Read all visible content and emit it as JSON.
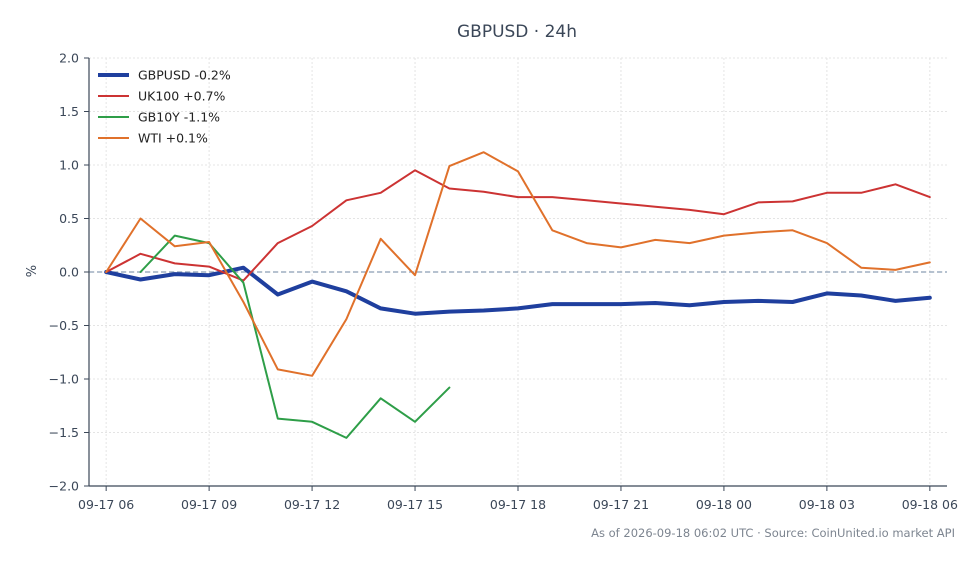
{
  "chart_data": {
    "type": "line",
    "title": "GBPUSD · 24h",
    "xlabel": "",
    "ylabel": "%",
    "ylim": [
      -2.0,
      2.0
    ],
    "yticks": [
      "2.0",
      "1.5",
      "1.0",
      "0.5",
      "0.0",
      "−0.5",
      "−1.0",
      "−1.5",
      "−2.0"
    ],
    "ytick_values": [
      2.0,
      1.5,
      1.0,
      0.5,
      0.0,
      -0.5,
      -1.0,
      -1.5,
      -2.0
    ],
    "xlim": [
      "2026-09-17 05:30",
      "2026-09-18 06:30"
    ],
    "xticks": [
      "09-17 06",
      "09-17 09",
      "09-17 12",
      "09-17 15",
      "09-17 18",
      "09-17 21",
      "09-18 00",
      "09-18 03",
      "09-18 06"
    ],
    "xtick_values": [
      "2026-09-17 06:00",
      "2026-09-17 09:00",
      "2026-09-17 12:00",
      "2026-09-17 15:00",
      "2026-09-17 18:00",
      "2026-09-17 21:00",
      "2026-09-18 00:00",
      "2026-09-18 03:00",
      "2026-09-18 06:00"
    ],
    "grid": true,
    "zero_line": true,
    "legend_position": "top-left",
    "series": [
      {
        "name": "GBPUSD -0.2%",
        "color": "#1f3f9e",
        "width": "thick",
        "x": [
          "2026-09-17 06:00",
          "2026-09-17 07:00",
          "2026-09-17 08:00",
          "2026-09-17 09:00",
          "2026-09-17 10:00",
          "2026-09-17 11:00",
          "2026-09-17 12:00",
          "2026-09-17 13:00",
          "2026-09-17 14:00",
          "2026-09-17 15:00",
          "2026-09-17 16:00",
          "2026-09-17 17:00",
          "2026-09-17 18:00",
          "2026-09-17 19:00",
          "2026-09-17 20:00",
          "2026-09-17 21:00",
          "2026-09-17 22:00",
          "2026-09-17 23:00",
          "2026-09-18 00:00",
          "2026-09-18 01:00",
          "2026-09-18 02:00",
          "2026-09-18 03:00",
          "2026-09-18 04:00",
          "2026-09-18 05:00",
          "2026-09-18 06:00"
        ],
        "values": [
          0.0,
          -0.07,
          -0.02,
          -0.03,
          0.04,
          -0.21,
          -0.09,
          -0.18,
          -0.34,
          -0.39,
          -0.37,
          -0.36,
          -0.34,
          -0.3,
          -0.3,
          -0.3,
          -0.29,
          -0.31,
          -0.28,
          -0.27,
          -0.28,
          -0.2,
          -0.22,
          -0.27,
          -0.24
        ]
      },
      {
        "name": "UK100 +0.7%",
        "color": "#cc3333",
        "width": "normal",
        "x": [
          "2026-09-17 06:00",
          "2026-09-17 07:00",
          "2026-09-17 08:00",
          "2026-09-17 09:00",
          "2026-09-17 10:00",
          "2026-09-17 11:00",
          "2026-09-17 12:00",
          "2026-09-17 13:00",
          "2026-09-17 14:00",
          "2026-09-17 15:00",
          "2026-09-17 16:00",
          "2026-09-17 17:00",
          "2026-09-17 18:00",
          "2026-09-17 19:00",
          "2026-09-17 20:00",
          "2026-09-17 21:00",
          "2026-09-17 22:00",
          "2026-09-17 23:00",
          "2026-09-18 00:00",
          "2026-09-18 01:00",
          "2026-09-18 02:00",
          "2026-09-18 03:00",
          "2026-09-18 04:00",
          "2026-09-18 05:00",
          "2026-09-18 06:00"
        ],
        "values": [
          0.0,
          0.17,
          0.08,
          0.05,
          -0.08,
          0.27,
          0.43,
          0.67,
          0.74,
          0.95,
          0.78,
          0.75,
          0.7,
          0.7,
          0.67,
          0.64,
          0.61,
          0.58,
          0.54,
          0.65,
          0.66,
          0.74,
          0.74,
          0.82,
          0.7
        ]
      },
      {
        "name": "GB10Y -1.1%",
        "color": "#2e9e48",
        "width": "normal",
        "x": [
          "2026-09-17 07:00",
          "2026-09-17 08:00",
          "2026-09-17 09:00",
          "2026-09-17 10:00",
          "2026-09-17 11:00",
          "2026-09-17 12:00",
          "2026-09-17 13:00",
          "2026-09-17 14:00",
          "2026-09-17 15:00",
          "2026-09-17 16:00"
        ],
        "values": [
          0.0,
          0.34,
          0.27,
          -0.1,
          -1.37,
          -1.4,
          -1.55,
          -1.18,
          -1.4,
          -1.08
        ]
      },
      {
        "name": "WTI +0.1%",
        "color": "#e0712b",
        "width": "normal",
        "x": [
          "2026-09-17 06:00",
          "2026-09-17 07:00",
          "2026-09-17 08:00",
          "2026-09-17 09:00",
          "2026-09-17 10:00",
          "2026-09-17 11:00",
          "2026-09-17 12:00",
          "2026-09-17 13:00",
          "2026-09-17 14:00",
          "2026-09-17 15:00",
          "2026-09-17 16:00",
          "2026-09-17 17:00",
          "2026-09-17 18:00",
          "2026-09-17 19:00",
          "2026-09-17 20:00",
          "2026-09-17 21:00",
          "2026-09-17 22:00",
          "2026-09-17 23:00",
          "2026-09-18 00:00",
          "2026-09-18 01:00",
          "2026-09-18 02:00",
          "2026-09-18 03:00",
          "2026-09-18 04:00",
          "2026-09-18 05:00",
          "2026-09-18 06:00"
        ],
        "values": [
          0.0,
          0.5,
          0.24,
          0.28,
          -0.28,
          -0.91,
          -0.97,
          -0.44,
          0.31,
          -0.03,
          0.99,
          1.12,
          0.94,
          0.39,
          0.27,
          0.23,
          0.3,
          0.27,
          0.34,
          0.37,
          0.39,
          0.27,
          0.04,
          0.02,
          0.09
        ]
      }
    ],
    "footer": "As of 2026-09-18 06:02 UTC · Source: CoinUnited.io market API"
  }
}
